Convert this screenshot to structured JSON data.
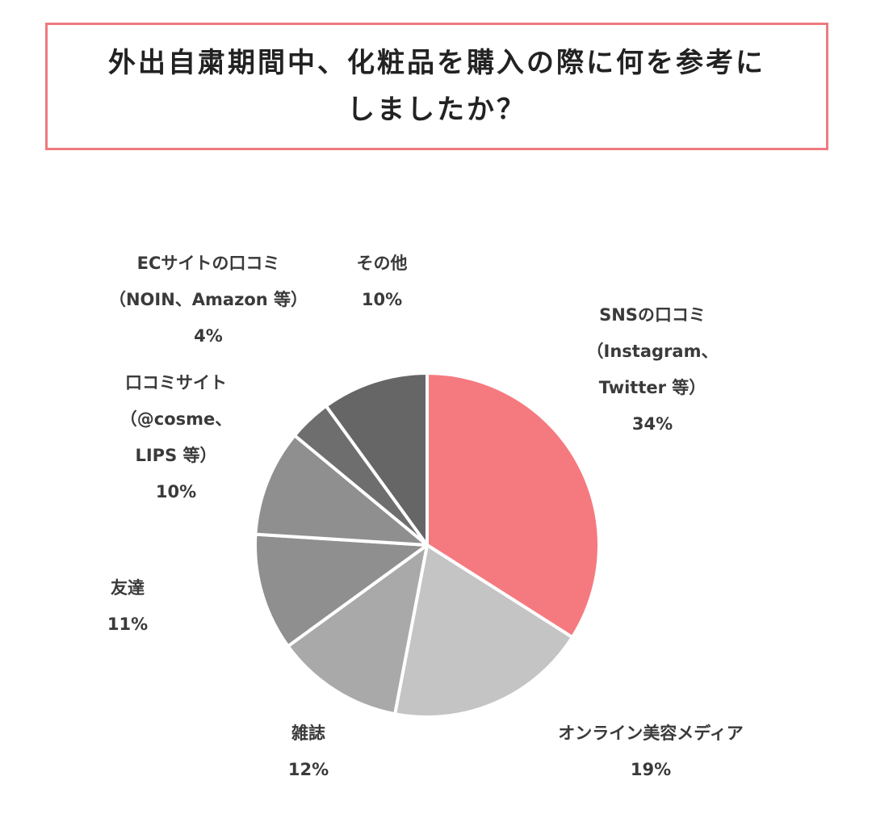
{
  "title": {
    "line1": "外出自粛期間中、化粧品を購入の際に何を参考に",
    "line2": "しましたか？"
  },
  "colors": {
    "title_border": "#ee7a7f",
    "highlight": "#f57a80",
    "gray_light": "#c4c4c4",
    "gray_mid": "#a9a9a9",
    "gray_dark": "#8f8f8f",
    "gray_darker": "#6e6e6e",
    "gray_darkest": "#666666",
    "slice_stroke": "#ffffff"
  },
  "chart_data": {
    "type": "pie",
    "title": "外出自粛期間中、化粧品を購入の際に何を参考にしましたか？",
    "slices": [
      {
        "name": "SNSの口コミ",
        "detail": [
          "（Instagram、",
          "Twitter 等）"
        ],
        "value": 34,
        "value_label": "34%",
        "color": "#f57a80"
      },
      {
        "name": "オンライン美容メディア",
        "detail": [],
        "value": 19,
        "value_label": "19%",
        "color": "#c4c4c4"
      },
      {
        "name": "雑誌",
        "detail": [],
        "value": 12,
        "value_label": "12%",
        "color": "#a9a9a9"
      },
      {
        "name": "友達",
        "detail": [],
        "value": 11,
        "value_label": "11%",
        "color": "#8f8f8f"
      },
      {
        "name": "口コミサイト",
        "detail": [
          "（@cosme、",
          "LIPS 等）"
        ],
        "value": 10,
        "value_label": "10%",
        "color": "#8f8f8f"
      },
      {
        "name": "ECサイトの口コミ",
        "detail": [
          "（NOIN、Amazon 等）"
        ],
        "value": 4,
        "value_label": "4%",
        "color": "#6e6e6e"
      },
      {
        "name": "その他",
        "detail": [],
        "value": 10,
        "value_label": "10%",
        "color": "#666666"
      }
    ]
  }
}
